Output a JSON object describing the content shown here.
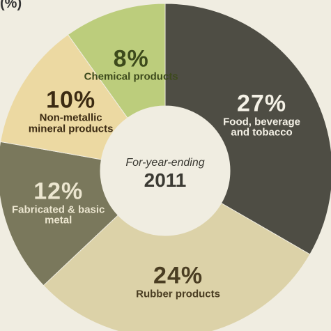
{
  "chart_data": {
    "type": "donut",
    "unit_label": "(%)",
    "center_caption": "For-year-ending",
    "center_year": "2011",
    "categories": [
      "Chemical products",
      "Food, beverage and tobacco",
      "Rubber products",
      "Fabricated & basic metal",
      "Non-metallic mineral products"
    ],
    "values": [
      8,
      27,
      24,
      12,
      10
    ],
    "value_labels": [
      "8%",
      "27%",
      "24%",
      "12%",
      "10%"
    ],
    "colors": [
      "#bccd7c",
      "#4e4d44",
      "#dcd2a8",
      "#7a785c",
      "#ecd9a2"
    ],
    "label_colors": [
      "#3d4a1c",
      "#f4f1e6",
      "#4a3d22",
      "#ece6d0",
      "#3b2a12"
    ]
  }
}
